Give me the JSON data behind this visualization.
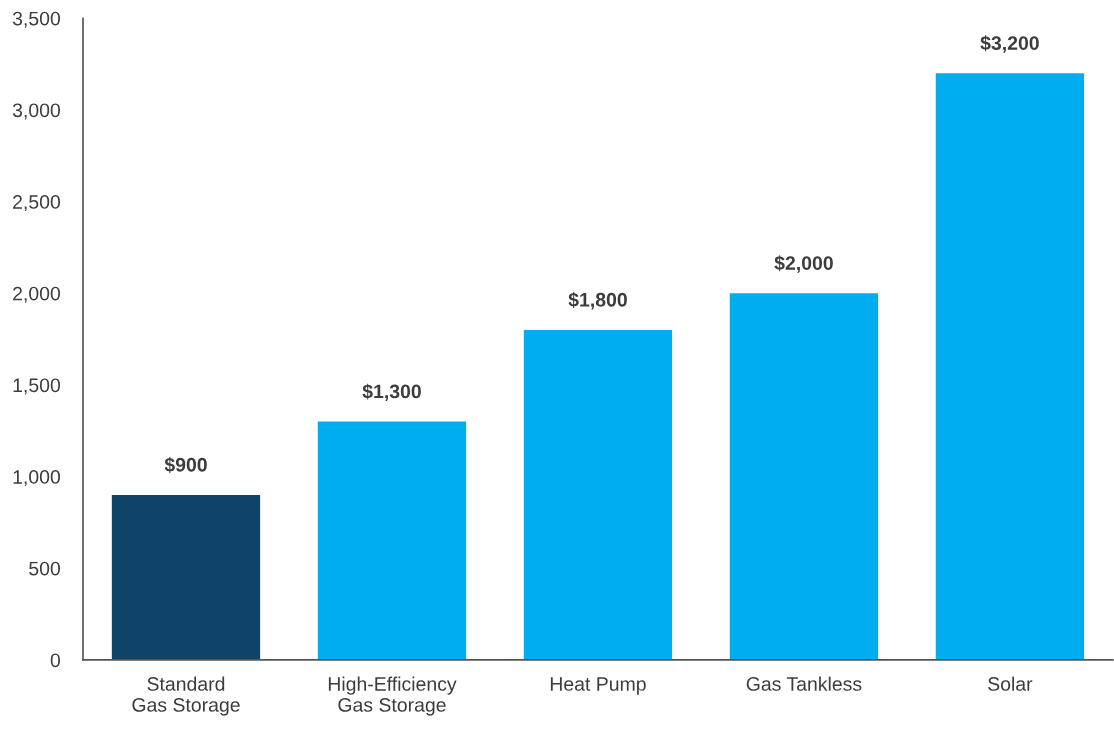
{
  "chart_data": {
    "type": "bar",
    "categories": [
      "Standard\nGas Storage",
      "High-Efficiency\nGas Storage",
      "Heat Pump",
      "Gas Tankless",
      "Solar"
    ],
    "values": [
      900,
      1300,
      1800,
      2000,
      3200
    ],
    "colors": [
      "#0f4468",
      "#00adee",
      "#00adee",
      "#00adee",
      "#00adee"
    ],
    "value_labels": [
      "$900",
      "$1,300",
      "$1,800",
      "$2,000",
      "$3,200"
    ],
    "ylim": [
      0,
      3500
    ],
    "yticks": [
      {
        "value": 0,
        "label": "0"
      },
      {
        "value": 500,
        "label": "500"
      },
      {
        "value": 1000,
        "label": "1,000"
      },
      {
        "value": 1500,
        "label": "1,500"
      },
      {
        "value": 2000,
        "label": "2,000"
      },
      {
        "value": 2500,
        "label": "2,500"
      },
      {
        "value": 3000,
        "label": "3,000"
      },
      {
        "value": 3500,
        "label": "3,500"
      }
    ],
    "grid": false,
    "legend": false
  }
}
